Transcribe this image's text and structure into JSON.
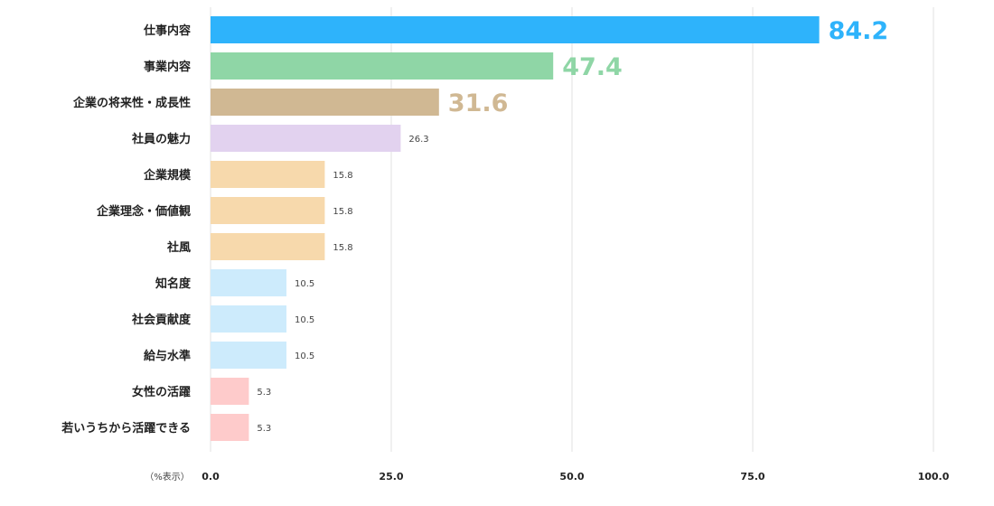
{
  "chart_data": {
    "type": "bar",
    "orientation": "horizontal",
    "title": "",
    "xlabel": "",
    "ylabel": "",
    "unit_note": "（%表示）",
    "xlim": [
      0,
      100
    ],
    "x_ticks": [
      "0.0",
      "25.0",
      "50.0",
      "75.0",
      "100.0"
    ],
    "grid": true,
    "categories": [
      "仕事内容",
      "事業内容",
      "企業の将来性・成長性",
      "社員の魅力",
      "企業規模",
      "企業理念・価値観",
      "社風",
      "知名度",
      "社会貢献度",
      "給与水準",
      "女性の活躍",
      "若いうちから活躍できる"
    ],
    "values": [
      84.2,
      47.4,
      31.6,
      26.3,
      15.8,
      15.8,
      15.8,
      10.5,
      10.5,
      10.5,
      5.3,
      5.3
    ],
    "value_labels": [
      "84.2",
      "47.4",
      "31.6",
      "26.3",
      "15.8",
      "15.8",
      "15.8",
      "10.5",
      "10.5",
      "10.5",
      "5.3",
      "5.3"
    ],
    "highlight_top": 3,
    "colors": [
      "#2eb3fb",
      "#8fd6a6",
      "#d0b893",
      "#e2d2ef",
      "#f7d9ac",
      "#f7d9ac",
      "#f7d9ac",
      "#cdebfc",
      "#cdebfc",
      "#cdebfc",
      "#fecbcb",
      "#fecbcb"
    ]
  }
}
